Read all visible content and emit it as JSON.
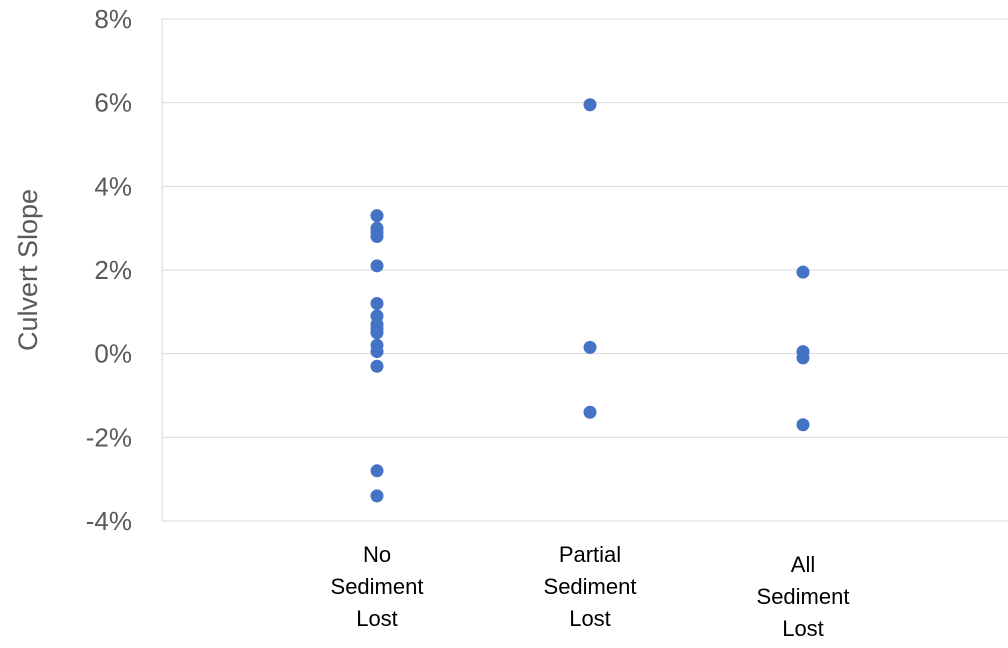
{
  "chart_data": {
    "type": "scatter",
    "title": "",
    "xlabel": "",
    "ylabel": "Culvert Slope",
    "ylim": [
      -4,
      8
    ],
    "ytick_step": 2,
    "y_tick_labels": [
      "8%",
      "6%",
      "4%",
      "2%",
      "0%",
      "-2%",
      "-4%"
    ],
    "grid": true,
    "legend": "none",
    "marker_color": "#4472c4",
    "categories": [
      [
        "No",
        "Sediment",
        "Lost"
      ],
      [
        "Partial",
        "Sediment",
        "Lost"
      ],
      [
        "All",
        "Sediment",
        "Lost"
      ]
    ],
    "series": [
      {
        "values": [
          [
            0,
            3.3
          ],
          [
            0,
            3.0
          ],
          [
            0,
            2.9
          ],
          [
            0,
            2.8
          ],
          [
            0,
            2.1
          ],
          [
            0,
            1.2
          ],
          [
            0,
            0.9
          ],
          [
            0,
            0.7
          ],
          [
            0,
            0.6
          ],
          [
            0,
            0.5
          ],
          [
            0,
            0.2
          ],
          [
            0,
            0.05
          ],
          [
            0,
            -0.3
          ],
          [
            0,
            -2.8
          ],
          [
            0,
            -3.4
          ],
          [
            1,
            5.95
          ],
          [
            1,
            0.15
          ],
          [
            1,
            -1.4
          ],
          [
            2,
            1.95
          ],
          [
            2,
            0.05
          ],
          [
            2,
            -0.1
          ],
          [
            2,
            -1.7
          ]
        ]
      }
    ]
  }
}
